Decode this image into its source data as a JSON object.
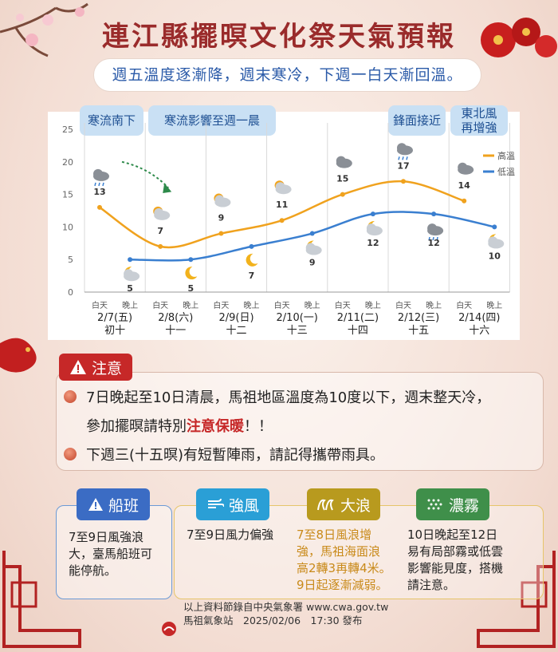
{
  "title": "連江縣擺暝文化祭天氣預報",
  "subtitle": "週五溫度逐漸降，週末寒冷，下週一白天漸回溫。",
  "phases": [
    {
      "text": "寒流南下"
    },
    {
      "text": "寒流影響至週一晨"
    },
    {
      "text": "鋒面接近"
    },
    {
      "line1": "東北風",
      "line2": "再增強"
    }
  ],
  "chart_data": {
    "type": "line",
    "ylim": [
      0,
      25
    ],
    "yticks": [
      0,
      5,
      10,
      15,
      20,
      25
    ],
    "x": [
      "白天",
      "晚上",
      "白天",
      "晚上",
      "白天",
      "晚上",
      "白天",
      "晚上",
      "白天",
      "晚上",
      "白天",
      "晚上",
      "白天",
      "晚上"
    ],
    "groups": [
      {
        "date": "2/7(五)",
        "lunar": "初十"
      },
      {
        "date": "2/8(六)",
        "lunar": "十一"
      },
      {
        "date": "2/9(日)",
        "lunar": "十二"
      },
      {
        "date": "2/10(一)",
        "lunar": "十三"
      },
      {
        "date": "2/11(二)",
        "lunar": "十四"
      },
      {
        "date": "2/12(三)",
        "lunar": "十五"
      },
      {
        "date": "2/14(四)",
        "lunar": "十六"
      }
    ],
    "series": [
      {
        "name": "高溫",
        "color": "#f0a21e",
        "points": [
          [
            0,
            13
          ],
          [
            2,
            7
          ],
          [
            4,
            9
          ],
          [
            6,
            11
          ],
          [
            8,
            15
          ],
          [
            10,
            17
          ],
          [
            12,
            14
          ]
        ]
      },
      {
        "name": "低溫",
        "color": "#3a7fd0",
        "points": [
          [
            1,
            5
          ],
          [
            3,
            5
          ],
          [
            5,
            7
          ],
          [
            7,
            9
          ],
          [
            9,
            12
          ],
          [
            11,
            12
          ],
          [
            13,
            10
          ]
        ]
      }
    ],
    "icons": [
      "rain-cloud",
      "moon-cloud",
      "sun-cloud",
      "moon",
      "sun-cloud",
      "moon",
      "sun-cloud",
      "moon-cloud",
      "cloud",
      "moon-cloud",
      "rain-cloud",
      "rain-cloud",
      "cloud",
      "moon-cloud"
    ]
  },
  "attention": {
    "label": "注意",
    "line1": "7日晚起至10日清晨，馬祖地區溫度為10度以下，週末整天冷，",
    "line2_pre": "參加擺暝請特別",
    "line2_em": "注意保暖",
    "line2_post": "！！",
    "line3": "下週三(十五暝)有短暫陣雨，請記得攜帶雨具。"
  },
  "hazards": {
    "ship": {
      "label": "船班",
      "text": [
        "7至9日風強浪",
        "大，臺馬船班可",
        "能停航。"
      ],
      "color": "#3b6cc4"
    },
    "wind": {
      "label": "強風",
      "text": [
        "7至9日風力偏強"
      ],
      "color": "#2a9fd6"
    },
    "wave": {
      "label": "大浪",
      "text": [
        "7至8日風浪增",
        "強，馬祖海面浪",
        "高2轉3再轉4米。",
        "9日起逐漸減弱。"
      ],
      "color": "#b89a1e"
    },
    "fog": {
      "label": "濃霧",
      "text": [
        "10日晚起至12日",
        "易有局部霧或低雲",
        "影響能見度，搭機",
        "請注意。"
      ],
      "color": "#3f8f4a"
    }
  },
  "footer": {
    "line1": "以上資料節錄自中央氣象署 www.cwa.gov.tw",
    "line2": "馬祖氣象站　2025/02/06　17:30 發布"
  }
}
